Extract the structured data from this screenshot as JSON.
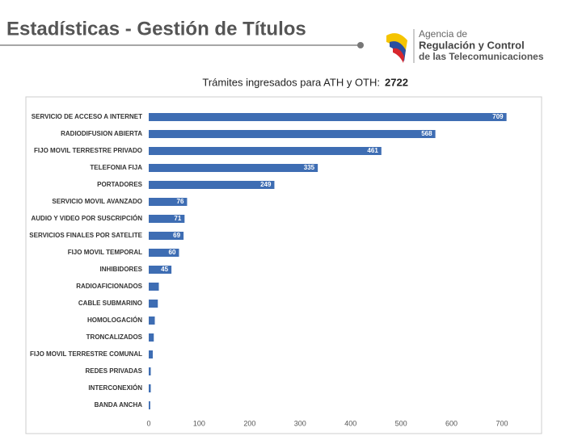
{
  "header": {
    "title": "Estadísticas - Gestión de Títulos",
    "logo_lines": [
      "Agencia de",
      "Regulación y Control",
      "de las Telecomunicaciones"
    ]
  },
  "chart_data": {
    "type": "hbar",
    "subtitle": "Trámites ingresados para ATH y OTH:",
    "total": 2722,
    "categories": [
      "SERVICIO DE ACCESO A INTERNET",
      "RADIODIFUSION ABIERTA",
      "FIJO MOVIL TERRESTRE PRIVADO",
      "TELEFONIA FIJA",
      "PORTADORES",
      "SERVICIO MOVIL AVANZADO",
      "AUDIO Y VIDEO POR SUSCRIPCIÓN",
      "SERVICIOS FINALES POR SATELITE",
      "FIJO MOVIL TEMPORAL",
      "INHIBIDORES",
      "RADIOAFICIONADOS",
      "CABLE SUBMARINO",
      "HOMOLOGACIÓN",
      "TRONCALIZADOS",
      "FIJO MOVIL TERRESTRE COMUNAL",
      "REDES PRIVADAS",
      "INTERCONEXIÓN",
      "BANDA ANCHA"
    ],
    "values": [
      709,
      568,
      461,
      335,
      249,
      76,
      71,
      69,
      60,
      45,
      20,
      18,
      12,
      10,
      8,
      4,
      4,
      3
    ],
    "value_labels": [
      "709",
      "568",
      "461",
      "335",
      "249",
      "76",
      "71",
      "69",
      "60",
      "45",
      null,
      null,
      null,
      null,
      null,
      null,
      null,
      null
    ],
    "color": "#3e6db3",
    "xlim": [
      0,
      700
    ],
    "xticks": [
      0,
      100,
      200,
      300,
      400,
      500,
      600,
      700
    ],
    "grid": false
  }
}
